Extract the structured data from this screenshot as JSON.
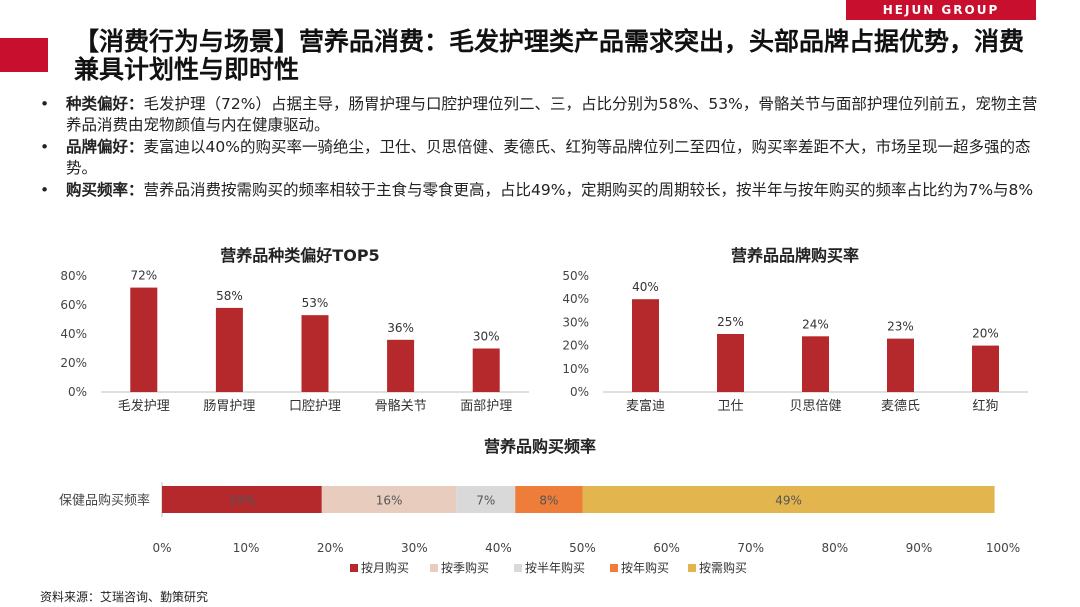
{
  "brand": "HEJUN GROUP",
  "title": "【消费行为与场景】营养品消费：毛发护理类产品需求突出，头部品牌占据优势，消费兼具计划性与即时性",
  "bullets": [
    {
      "label": "种类偏好：",
      "text": "毛发护理（72%）占据主导，肠胃护理与口腔护理位列二、三，占比分别为58%、53%，骨骼关节与面部护理位列前五，宠物主营养品消费由宠物颜值与内在健康驱动。"
    },
    {
      "label": "品牌偏好：",
      "text": "麦富迪以40%的购买率一骑绝尘，卫仕、贝思倍健、麦德氏、红狗等品牌位列二至四位，购买率差距不大，市场呈现一超多强的态势。"
    },
    {
      "label": "购买频率：",
      "text": "营养品消费按需购买的频率相较于主食与零食更高，占比49%，定期购买的周期较长，按半年与按年购买的频率占比约为7%与8%"
    }
  ],
  "source": "资料来源：艾瑞咨询、勤策研究",
  "colors": {
    "accent": "#c8102e",
    "bar": "#b5282c"
  },
  "chart_data": [
    {
      "type": "bar",
      "title": "营养品种类偏好TOP5",
      "categories": [
        "毛发护理",
        "肠胃护理",
        "口腔护理",
        "骨骼关节",
        "面部护理"
      ],
      "values": [
        72,
        58,
        53,
        36,
        30
      ],
      "ylim": [
        0,
        80
      ],
      "yticks": [
        0,
        20,
        40,
        60,
        80
      ],
      "unit": "%"
    },
    {
      "type": "bar",
      "title": "营养品品牌购买率",
      "categories": [
        "麦富迪",
        "卫仕",
        "贝思倍健",
        "麦德氏",
        "红狗"
      ],
      "values": [
        40,
        25,
        24,
        23,
        20
      ],
      "ylim": [
        0,
        50
      ],
      "yticks": [
        0,
        10,
        20,
        30,
        40,
        50
      ],
      "unit": "%"
    },
    {
      "type": "bar",
      "orientation": "horizontal-stacked",
      "title": "营养品购买频率",
      "category": "保健品购买频率",
      "series": [
        {
          "name": "按月购买",
          "value": 19,
          "color": "#b5282c"
        },
        {
          "name": "按季购买",
          "value": 16,
          "color": "#e8cdbf"
        },
        {
          "name": "按半年购买",
          "value": 7,
          "color": "#d9d9d9"
        },
        {
          "name": "按年购买",
          "value": 8,
          "color": "#ee7d3a"
        },
        {
          "name": "按需购买",
          "value": 49,
          "color": "#e3b54f"
        }
      ],
      "xlim": [
        0,
        100
      ],
      "xticks": [
        0,
        10,
        20,
        30,
        40,
        50,
        60,
        70,
        80,
        90,
        100
      ],
      "unit": "%"
    }
  ]
}
